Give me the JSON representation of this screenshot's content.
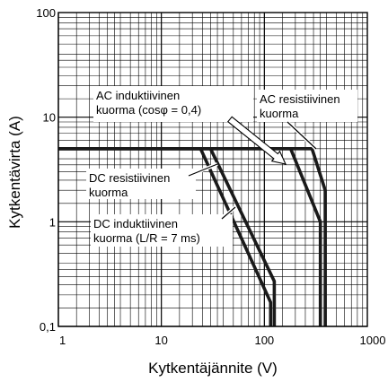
{
  "chart_data": {
    "type": "line",
    "xlabel": "Kytkentäjännite (V)",
    "ylabel": "Kytkentävirta (A)",
    "xscale": "log",
    "yscale": "log",
    "xlim": [
      1,
      1000
    ],
    "ylim": [
      0.1,
      100
    ],
    "grid": true,
    "x_tick_labels": [
      "1",
      "10",
      "100",
      "1000"
    ],
    "y_tick_labels": [
      "0,1",
      "1",
      "10",
      "100"
    ],
    "series": [
      {
        "name": "DC resistiivinen kuorma",
        "x": [
          1,
          30,
          125,
          125
        ],
        "y": [
          5,
          5,
          0.27,
          0.1
        ]
      },
      {
        "name": "DC induktiivinen kuorma (L/R = 7 ms)",
        "x": [
          1,
          24,
          115,
          115
        ],
        "y": [
          5,
          5,
          0.17,
          0.1
        ]
      },
      {
        "name": "AC resistiivinen kuorma",
        "x": [
          1,
          290,
          390,
          390
        ],
        "y": [
          5,
          5,
          2,
          0.1
        ]
      },
      {
        "name": "AC induktiivinen kuorma (cosφ = 0,4)",
        "x": [
          1,
          180,
          350,
          350
        ],
        "y": [
          5,
          5,
          1,
          0.1
        ]
      }
    ],
    "annotations": [
      {
        "lines": [
          "AC induktiivinen",
          "kuorma (cosφ = 0,4)"
        ]
      },
      {
        "lines": [
          "AC resistiivinen",
          "kuorma"
        ]
      },
      {
        "lines": [
          "DC resistiivinen",
          "kuorma"
        ]
      },
      {
        "lines": [
          "DC induktiivinen",
          "kuorma (L/R = 7 ms)"
        ]
      }
    ]
  }
}
